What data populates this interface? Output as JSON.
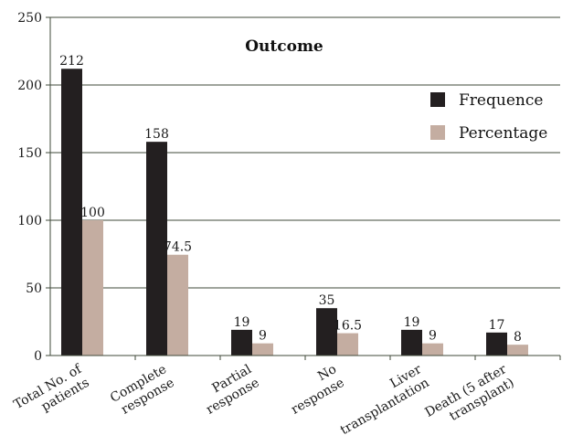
{
  "chart_data": {
    "type": "bar",
    "title": "Outcome",
    "categories": [
      [
        "Total No. of",
        "patients"
      ],
      [
        "Complete",
        "response"
      ],
      [
        "Partial",
        "response"
      ],
      [
        "No",
        "response"
      ],
      [
        "Liver",
        "transplantation"
      ],
      [
        "Death (5 after",
        "transplant)"
      ]
    ],
    "series": [
      {
        "name": "Frequence",
        "values": [
          212,
          158,
          19,
          35,
          19,
          17
        ],
        "labels": [
          "212",
          "158",
          "19",
          "35",
          "19",
          "17"
        ],
        "color": "#231f20"
      },
      {
        "name": "Percentage",
        "values": [
          100,
          74.5,
          9,
          16.5,
          9,
          8
        ],
        "labels": [
          "100",
          "74.5",
          "9",
          "16.5",
          "9",
          "8"
        ],
        "color": "#c4ada1"
      }
    ],
    "ylim": [
      0,
      250
    ],
    "yticks": [
      0,
      50,
      100,
      150,
      200,
      250
    ],
    "xlabel": "",
    "ylabel": "",
    "grid": true,
    "legend_position": "right"
  }
}
